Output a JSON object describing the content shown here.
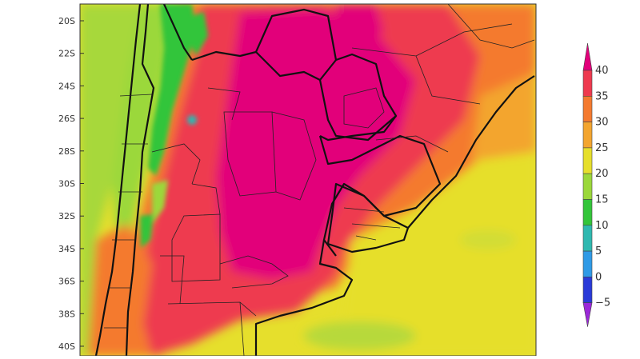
{
  "map": {
    "lat_labels": [
      "20S",
      "22S",
      "24S",
      "26S",
      "28S",
      "30S",
      "32S",
      "34S",
      "36S",
      "38S",
      "40S"
    ]
  },
  "colorbar": {
    "tick_labels": [
      "40",
      "35",
      "30",
      "25",
      "20",
      "15",
      "10",
      "5",
      "0",
      "−5"
    ],
    "bins": [
      {
        "color": "#e2007a",
        "label": "> 40"
      },
      {
        "color": "#ee3a4f",
        "label": "35-40"
      },
      {
        "color": "#f47a2f",
        "label": "30-35"
      },
      {
        "color": "#f3a52f",
        "label": "25-30"
      },
      {
        "color": "#e6df2c",
        "label": "20-25"
      },
      {
        "color": "#9bd83a",
        "label": "15-20"
      },
      {
        "color": "#33c53a",
        "label": "10-15"
      },
      {
        "color": "#2fb8b0",
        "label": "5-10"
      },
      {
        "color": "#2f9ae6",
        "label": "0-5"
      },
      {
        "color": "#2a3ad8",
        "label": "-5-0"
      },
      {
        "color": "#9b28d8",
        "label": "< -5"
      }
    ]
  }
}
